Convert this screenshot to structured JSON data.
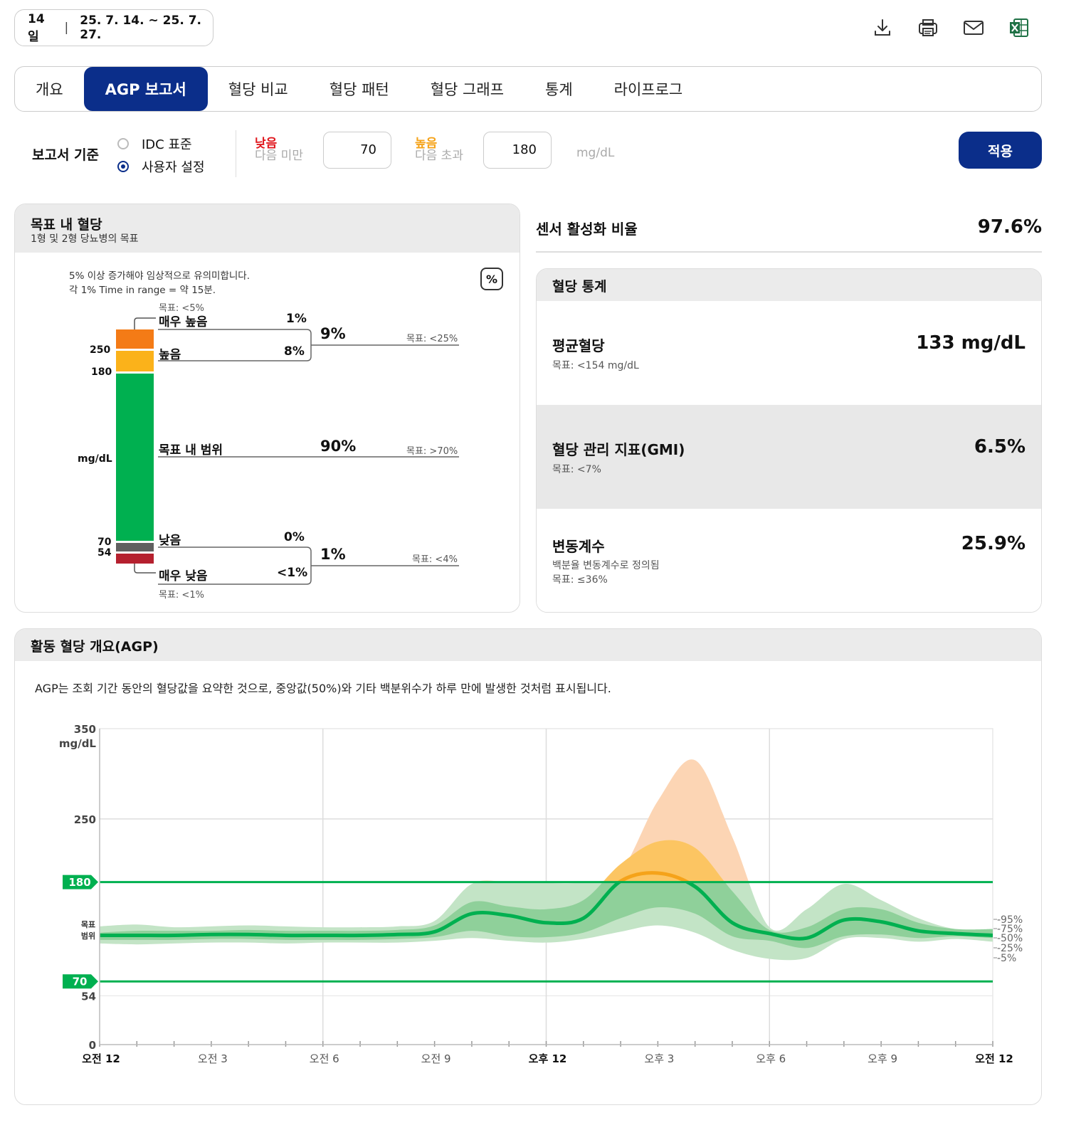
{
  "period": {
    "days": "14일",
    "range": "25. 7. 14. ~ 25. 7. 27."
  },
  "toolbar": {
    "icons": [
      "download-icon",
      "print-icon",
      "mail-icon",
      "excel-icon"
    ]
  },
  "tabs": [
    "개요",
    "AGP 보고서",
    "혈당 비교",
    "혈당 패턴",
    "혈당 그래프",
    "통계",
    "라이프로그"
  ],
  "active_tab": "AGP 보고서",
  "criteria": {
    "label": "보고서 기준",
    "options": [
      "IDC 표준",
      "사용자 설정"
    ],
    "selected": "사용자 설정",
    "low_label": "낮음",
    "low_sub": "다음 미만",
    "low_value": "70",
    "high_label": "높음",
    "high_sub": "다음 초과",
    "high_value": "180",
    "unit": "mg/dL",
    "apply": "적용"
  },
  "tir": {
    "title": "목표 내 혈당",
    "subtitle": "1형 및 2형 당뇨병의 목표",
    "note1": "5% 이상 증가해야 임상적으로 유의미합니다.",
    "note2": "각 1% Time in range = 약 15분.",
    "percent_icon": "percent-icon",
    "axis": {
      "v250": "250",
      "v180": "180",
      "unit": "mg/dL",
      "v70": "70",
      "v54": "54"
    },
    "very_high": {
      "label": "매우 높음",
      "value": "1%",
      "goal": "목표: <5%"
    },
    "high": {
      "label": "높음",
      "value": "8%"
    },
    "high_total": {
      "value": "9%",
      "goal": "목표: <25%"
    },
    "in_range": {
      "label": "목표 내 범위",
      "value": "90%",
      "goal": "목표: >70%"
    },
    "low": {
      "label": "낮음",
      "value": "0%"
    },
    "low_total": {
      "value": "1%",
      "goal": "목표: <4%"
    },
    "very_low": {
      "label": "매우 낮음",
      "value": "<1%",
      "goal": "목표: <1%"
    },
    "colors": {
      "very_high": "#f47b16",
      "high": "#fbb21a",
      "in_range": "#00b050",
      "low": "#606060",
      "very_low": "#b5202e"
    }
  },
  "sensor": {
    "label": "센서 활성화 비율",
    "value": "97.6%"
  },
  "stats": {
    "title": "혈당 통계",
    "rows": [
      {
        "title": "평균혈당",
        "sub1": "목표: <154 mg/dL",
        "sub2": "",
        "value": "133 mg/dL"
      },
      {
        "title": "혈당 관리 지표(GMI)",
        "sub1": "목표: <7%",
        "sub2": "",
        "value": "6.5%"
      },
      {
        "title": "변동계수",
        "sub1": "백분율 변동계수로 정의됨",
        "sub2": "목표: ≤36%",
        "value": "25.9%"
      }
    ]
  },
  "agp": {
    "title": "활동 혈당 개요(AGP)",
    "description": "AGP는 조회 기간 동안의 혈당값을 요약한 것으로, 중앙값(50%)와 기타 백분위수가 하루 만에 발생한 것처럼 표시됩니다."
  },
  "chart_data": {
    "type": "area",
    "title": "",
    "xlabel": "",
    "ylabel": "mg/dL",
    "ylim": [
      0,
      350
    ],
    "y_ticks": [
      0,
      54,
      70,
      180,
      250,
      350
    ],
    "target_range": [
      70,
      180
    ],
    "target_label": "목표\n범위",
    "x_ticks": [
      "오전 12",
      "오전 3",
      "오전 6",
      "오전 9",
      "오후 12",
      "오후 3",
      "오후 6",
      "오후 9",
      "오전 12"
    ],
    "x_hours": [
      0,
      1,
      2,
      3,
      4,
      5,
      6,
      7,
      8,
      9,
      10,
      11,
      12,
      13,
      14,
      15,
      16,
      17,
      18,
      19,
      20,
      21,
      22,
      23,
      24
    ],
    "percentile_labels": [
      "95%",
      "75%",
      "50%",
      "25%",
      "5%"
    ],
    "series": [
      {
        "name": "95%",
        "values": [
          131,
          133,
          130,
          131,
          132,
          131,
          130,
          130,
          131,
          137,
          178,
          180,
          179,
          180,
          192,
          270,
          315,
          230,
          130,
          150,
          178,
          160,
          140,
          128,
          128
        ]
      },
      {
        "name": "75%",
        "values": [
          124,
          126,
          126,
          126,
          127,
          126,
          126,
          126,
          127,
          132,
          158,
          153,
          150,
          160,
          200,
          225,
          218,
          170,
          127,
          130,
          150,
          150,
          135,
          128,
          128
        ]
      },
      {
        "name": "50%",
        "values": [
          121,
          121,
          121,
          122,
          122,
          121,
          121,
          121,
          122,
          125,
          145,
          143,
          135,
          140,
          181,
          190,
          175,
          135,
          123,
          118,
          138,
          136,
          126,
          123,
          121
        ]
      },
      {
        "name": "25%",
        "values": [
          116,
          116,
          116,
          117,
          117,
          116,
          116,
          116,
          117,
          119,
          126,
          120,
          119,
          124,
          140,
          152,
          145,
          120,
          115,
          107,
          120,
          122,
          118,
          120,
          118
        ]
      },
      {
        "name": "5%",
        "values": [
          112,
          111,
          112,
          113,
          113,
          112,
          113,
          113,
          113,
          115,
          118,
          115,
          113,
          117,
          125,
          132,
          124,
          105,
          95,
          96,
          117,
          118,
          114,
          117,
          114
        ]
      }
    ],
    "colors": {
      "outer_high": "#fcd5b4",
      "mid_high": "#fde2a6",
      "inner_high": "#fbbf56",
      "median_high": "#f5a31a",
      "outer_in": "#c3e4c6",
      "inner_in": "#8fd09a",
      "median": "#00b050",
      "target_line": "#00b050",
      "grid": "#dddddd"
    }
  }
}
